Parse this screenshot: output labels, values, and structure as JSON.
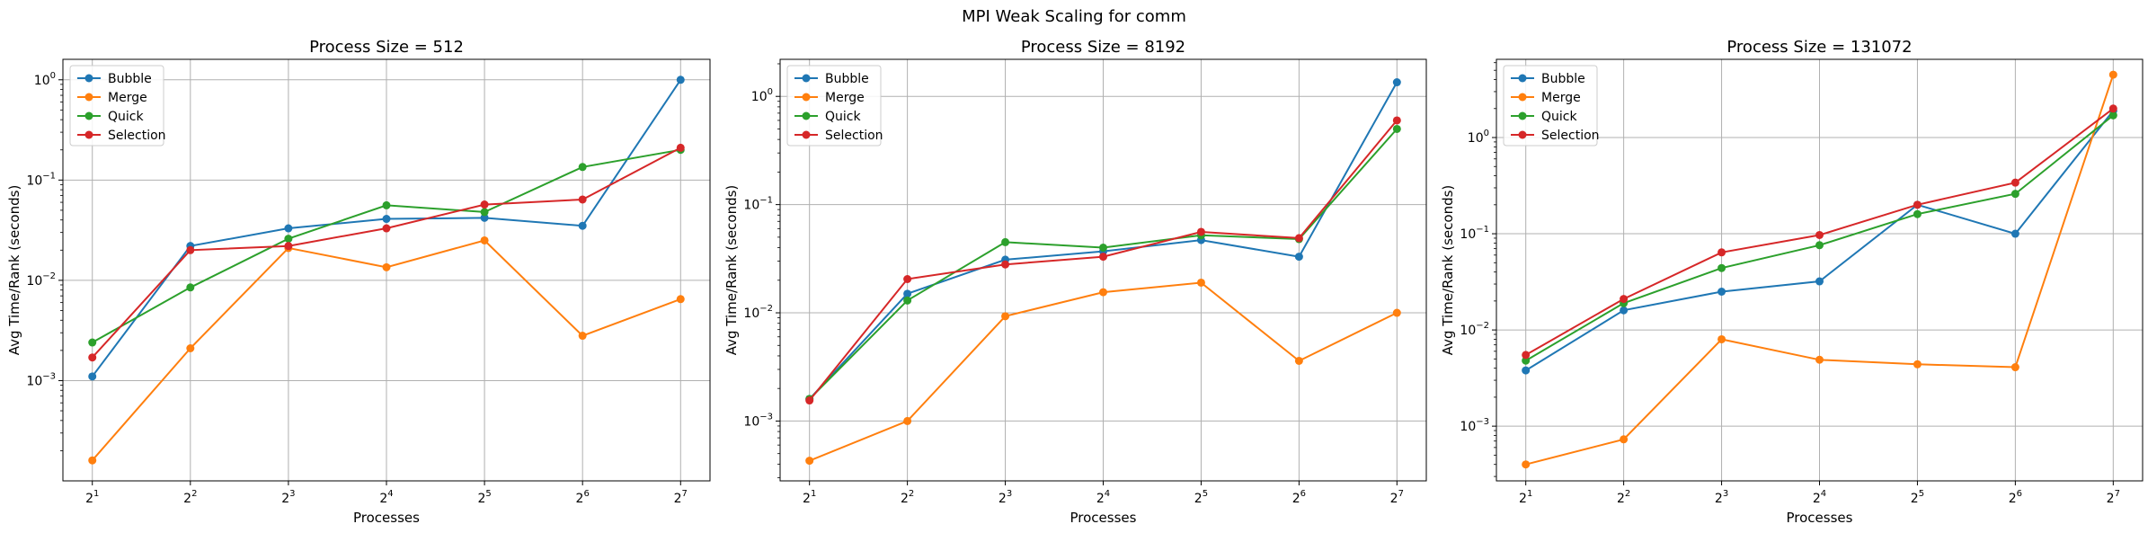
{
  "suptitle": "MPI Weak Scaling for comm",
  "chart_data": [
    {
      "type": "line",
      "title": "Process Size = 512",
      "xlabel": "Processes",
      "ylabel": "Avg Time/Rank (seconds)",
      "x_scale": "log2",
      "y_scale": "log10",
      "x": [
        2,
        4,
        8,
        16,
        32,
        64,
        128
      ],
      "x_tick_labels": [
        "2^1",
        "2^2",
        "2^3",
        "2^4",
        "2^5",
        "2^6",
        "2^7"
      ],
      "y_ticks": [
        0.001,
        0.01,
        0.1,
        1
      ],
      "y_tick_labels": [
        "10^-3",
        "10^-2",
        "10^-1",
        "10^0"
      ],
      "ylim": [
        0.0001,
        1.6
      ],
      "grid": true,
      "legend_position": "upper-left",
      "series": [
        {
          "name": "Bubble",
          "color": "#1f77b4",
          "values": [
            0.0011,
            0.022,
            0.033,
            0.041,
            0.042,
            0.035,
            1.0
          ]
        },
        {
          "name": "Merge",
          "color": "#ff7f0e",
          "values": [
            0.00016,
            0.0021,
            0.021,
            0.0135,
            0.025,
            0.0028,
            0.0065
          ]
        },
        {
          "name": "Quick",
          "color": "#2ca02c",
          "values": [
            0.0024,
            0.0085,
            0.026,
            0.056,
            0.048,
            0.135,
            0.2
          ]
        },
        {
          "name": "Selection",
          "color": "#d62728",
          "values": [
            0.0017,
            0.02,
            0.022,
            0.033,
            0.057,
            0.064,
            0.21
          ]
        }
      ]
    },
    {
      "type": "line",
      "title": "Process Size = 8192",
      "xlabel": "Processes",
      "ylabel": "Avg Time/Rank (seconds)",
      "x_scale": "log2",
      "y_scale": "log10",
      "x": [
        2,
        4,
        8,
        16,
        32,
        64,
        128
      ],
      "x_tick_labels": [
        "2^1",
        "2^2",
        "2^3",
        "2^4",
        "2^5",
        "2^6",
        "2^7"
      ],
      "y_ticks": [
        0.001,
        0.01,
        0.1,
        1
      ],
      "y_tick_labels": [
        "10^-3",
        "10^-2",
        "10^-1",
        "10^0"
      ],
      "ylim": [
        0.00028,
        2.2
      ],
      "grid": true,
      "legend_position": "upper-left",
      "series": [
        {
          "name": "Bubble",
          "color": "#1f77b4",
          "values": [
            0.0016,
            0.015,
            0.031,
            0.037,
            0.047,
            0.033,
            1.35
          ]
        },
        {
          "name": "Merge",
          "color": "#ff7f0e",
          "values": [
            0.00043,
            0.001,
            0.0093,
            0.0155,
            0.019,
            0.0036,
            0.01
          ]
        },
        {
          "name": "Quick",
          "color": "#2ca02c",
          "values": [
            0.0016,
            0.013,
            0.045,
            0.04,
            0.052,
            0.048,
            0.5
          ]
        },
        {
          "name": "Selection",
          "color": "#d62728",
          "values": [
            0.00155,
            0.0205,
            0.028,
            0.033,
            0.056,
            0.049,
            0.6
          ]
        }
      ]
    },
    {
      "type": "line",
      "title": "Process Size = 131072",
      "xlabel": "Processes",
      "ylabel": "Avg Time/Rank (seconds)",
      "x_scale": "log2",
      "y_scale": "log10",
      "x": [
        2,
        4,
        8,
        16,
        32,
        64,
        128
      ],
      "x_tick_labels": [
        "2^1",
        "2^2",
        "2^3",
        "2^4",
        "2^5",
        "2^6",
        "2^7"
      ],
      "y_ticks": [
        0.001,
        0.01,
        0.1,
        1
      ],
      "y_tick_labels": [
        "10^-3",
        "10^-2",
        "10^-1",
        "10^0"
      ],
      "ylim": [
        0.00027,
        6.5
      ],
      "grid": true,
      "legend_position": "upper-left",
      "series": [
        {
          "name": "Bubble",
          "color": "#1f77b4",
          "values": [
            0.0038,
            0.016,
            0.025,
            0.032,
            0.2,
            0.1,
            1.9
          ]
        },
        {
          "name": "Merge",
          "color": "#ff7f0e",
          "values": [
            0.0004,
            0.00073,
            0.008,
            0.0049,
            0.0044,
            0.0041,
            4.5
          ]
        },
        {
          "name": "Quick",
          "color": "#2ca02c",
          "values": [
            0.0048,
            0.019,
            0.044,
            0.076,
            0.16,
            0.26,
            1.7
          ]
        },
        {
          "name": "Selection",
          "color": "#d62728",
          "values": [
            0.0055,
            0.021,
            0.064,
            0.097,
            0.2,
            0.34,
            2.0
          ]
        }
      ]
    }
  ]
}
